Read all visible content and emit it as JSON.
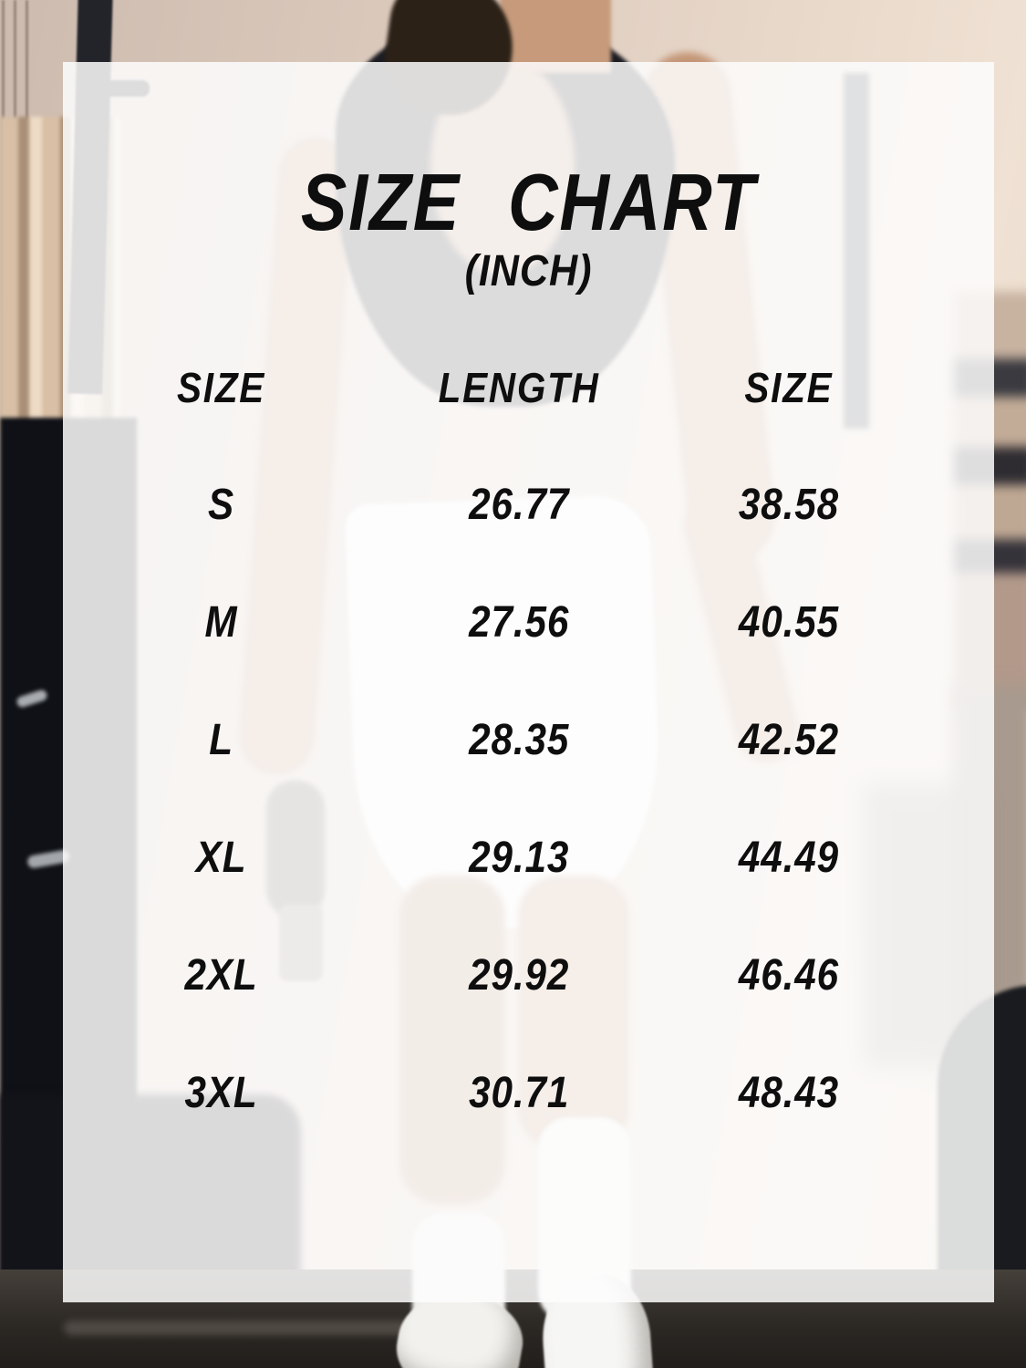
{
  "title": "SIZE CHART",
  "subtitle": "(INCH)",
  "table": {
    "headers": [
      "SIZE",
      "LENGTH",
      "SIZE"
    ],
    "rows": [
      [
        "S",
        "26.77",
        "38.58"
      ],
      [
        "M",
        "27.56",
        "40.55"
      ],
      [
        "L",
        "28.35",
        "42.52"
      ],
      [
        "XL",
        "29.13",
        "44.49"
      ],
      [
        "2XL",
        "29.92",
        "46.46"
      ],
      [
        "3XL",
        "30.71",
        "48.43"
      ]
    ]
  },
  "chart_data": {
    "type": "table",
    "title": "SIZE CHART",
    "subtitle": "(INCH)",
    "unit": "inch",
    "columns": [
      "SIZE",
      "LENGTH",
      "SIZE"
    ],
    "categories": [
      "S",
      "M",
      "L",
      "XL",
      "2XL",
      "3XL"
    ],
    "series": [
      {
        "name": "LENGTH",
        "values": [
          26.77,
          27.56,
          28.35,
          29.13,
          29.92,
          30.71
        ]
      },
      {
        "name": "SIZE",
        "values": [
          38.58,
          40.55,
          42.52,
          44.49,
          46.46,
          48.43
        ]
      }
    ]
  },
  "colors": {
    "text": "#0e0e0e",
    "panel_overlay": "rgba(253,253,253,0.85)"
  }
}
